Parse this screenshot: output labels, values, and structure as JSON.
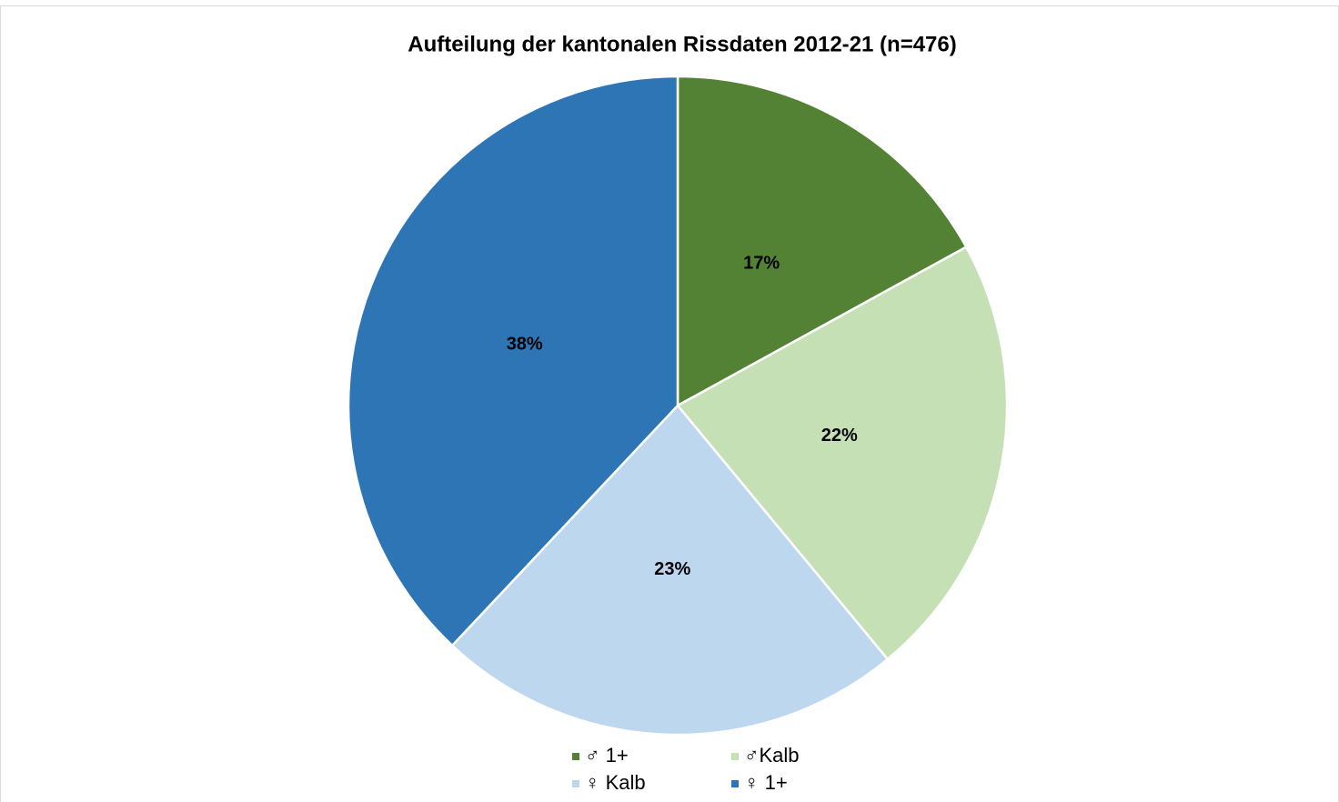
{
  "chart_data": {
    "type": "pie",
    "title": "Aufteilung der kantonalen Rissdaten 2012-21 (n=476)",
    "categories": [
      "♂ 1+",
      "♂Kalb",
      "♀ Kalb",
      "♀ 1+"
    ],
    "values": [
      17,
      22,
      23,
      38
    ],
    "value_labels": [
      "17%",
      "22%",
      "23%",
      "38%"
    ],
    "colors": [
      "#548235",
      "#c5e0b4",
      "#bdd7ee",
      "#2e75b6"
    ],
    "legend": "bottom"
  }
}
